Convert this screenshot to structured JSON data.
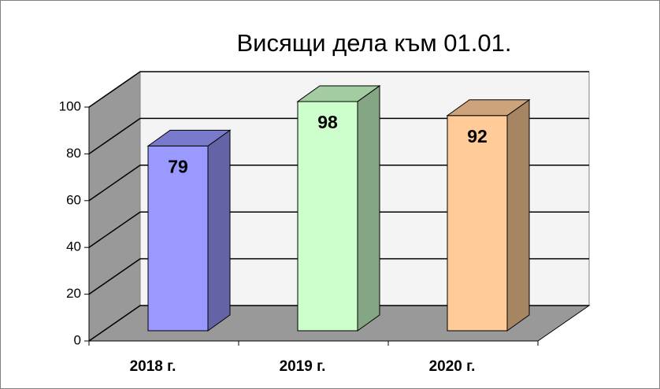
{
  "chart_data": {
    "type": "bar3d",
    "title": "Висящи дела към 01.01.",
    "categories": [
      "2018 г.",
      "2019 г.",
      "2020 г."
    ],
    "values": [
      79,
      98,
      92
    ],
    "colors": [
      "#9999ff",
      "#ccffcc",
      "#ffcc99"
    ],
    "ylim": [
      0,
      100
    ],
    "yticks": [
      0,
      20,
      40,
      60,
      80,
      100
    ],
    "grid": true
  }
}
